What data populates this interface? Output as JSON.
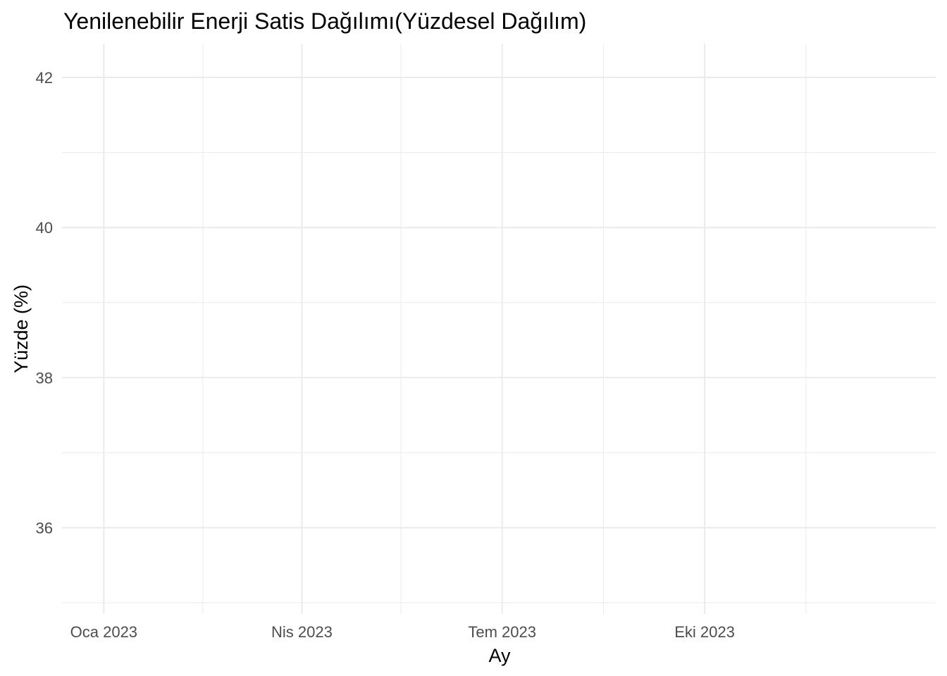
{
  "chart_data": {
    "type": "line",
    "title": "Yenilenebilir Enerji Satis Dağılımı(Yüzdesel Dağılım)",
    "xlabel": "Ay",
    "ylabel": "Yüzde (%)",
    "x_scale": "date",
    "xlim": [
      "2022-12-13",
      "2024-01-14"
    ],
    "ylim": [
      34.85,
      42.45
    ],
    "x_ticks": [
      {
        "value": "2023-01-01",
        "label": "Oca 2023"
      },
      {
        "value": "2023-04-01",
        "label": "Nis 2023"
      },
      {
        "value": "2023-07-01",
        "label": "Tem 2023"
      },
      {
        "value": "2023-10-01",
        "label": "Eki 2023"
      }
    ],
    "x_minor_ticks": [
      "2023-02-15",
      "2023-05-16",
      "2023-08-16",
      "2023-11-16"
    ],
    "y_ticks": [
      36,
      38,
      40,
      42
    ],
    "y_minor_ticks": [
      35,
      37,
      39,
      41
    ],
    "grid": true,
    "series": []
  }
}
